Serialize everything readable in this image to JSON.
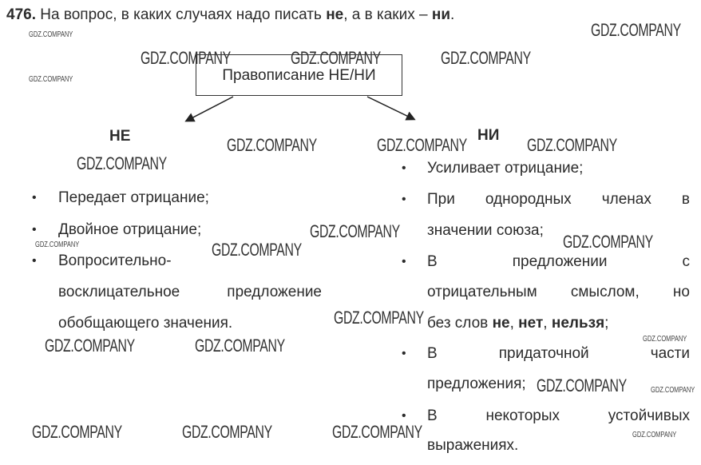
{
  "header": {
    "number": "476.",
    "text_before": " На вопрос, в каких случаях надо писать ",
    "bold1": "не",
    "text_mid": ", а в каких – ",
    "bold2": "ни",
    "text_end": "."
  },
  "diagram": {
    "root": "Правописание НЕ/НИ",
    "left_head": "НЕ",
    "right_head": "НИ"
  },
  "left_column": {
    "bullet": "•",
    "lines": [
      [
        {
          "t": "Передает отрицание;"
        }
      ],
      [
        {
          "t": "Двойное отрицание;"
        }
      ],
      [
        {
          "t": "Вопросительно-"
        }
      ],
      [
        {
          "t": "восклицательное предложение"
        }
      ],
      [
        {
          "t": "обобщающего значения."
        }
      ]
    ]
  },
  "right_column": {
    "bullet": "•",
    "lines": [
      [
        {
          "t": "Усиливает отрицание;"
        }
      ],
      [
        {
          "t": "При однородных членах в"
        }
      ],
      [
        {
          "t": "значении союза;"
        }
      ],
      [
        {
          "t": "В предложении с"
        }
      ],
      [
        {
          "t": "отрицательным смыслом, но"
        }
      ],
      [
        {
          "t": "без слов "
        },
        {
          "t": "не",
          "b": true
        },
        {
          "t": ", "
        },
        {
          "t": "нет",
          "b": true
        },
        {
          "t": ", "
        },
        {
          "t": "нельзя",
          "b": true
        },
        {
          "t": ";"
        }
      ],
      [
        {
          "t": "В придаточной части"
        }
      ],
      [
        {
          "t": "предложения;"
        }
      ],
      [
        {
          "t": "В некоторых устойчивых"
        }
      ],
      [
        {
          "t": "выражениях."
        }
      ]
    ]
  },
  "watermark": "GDZ.COMPANY"
}
